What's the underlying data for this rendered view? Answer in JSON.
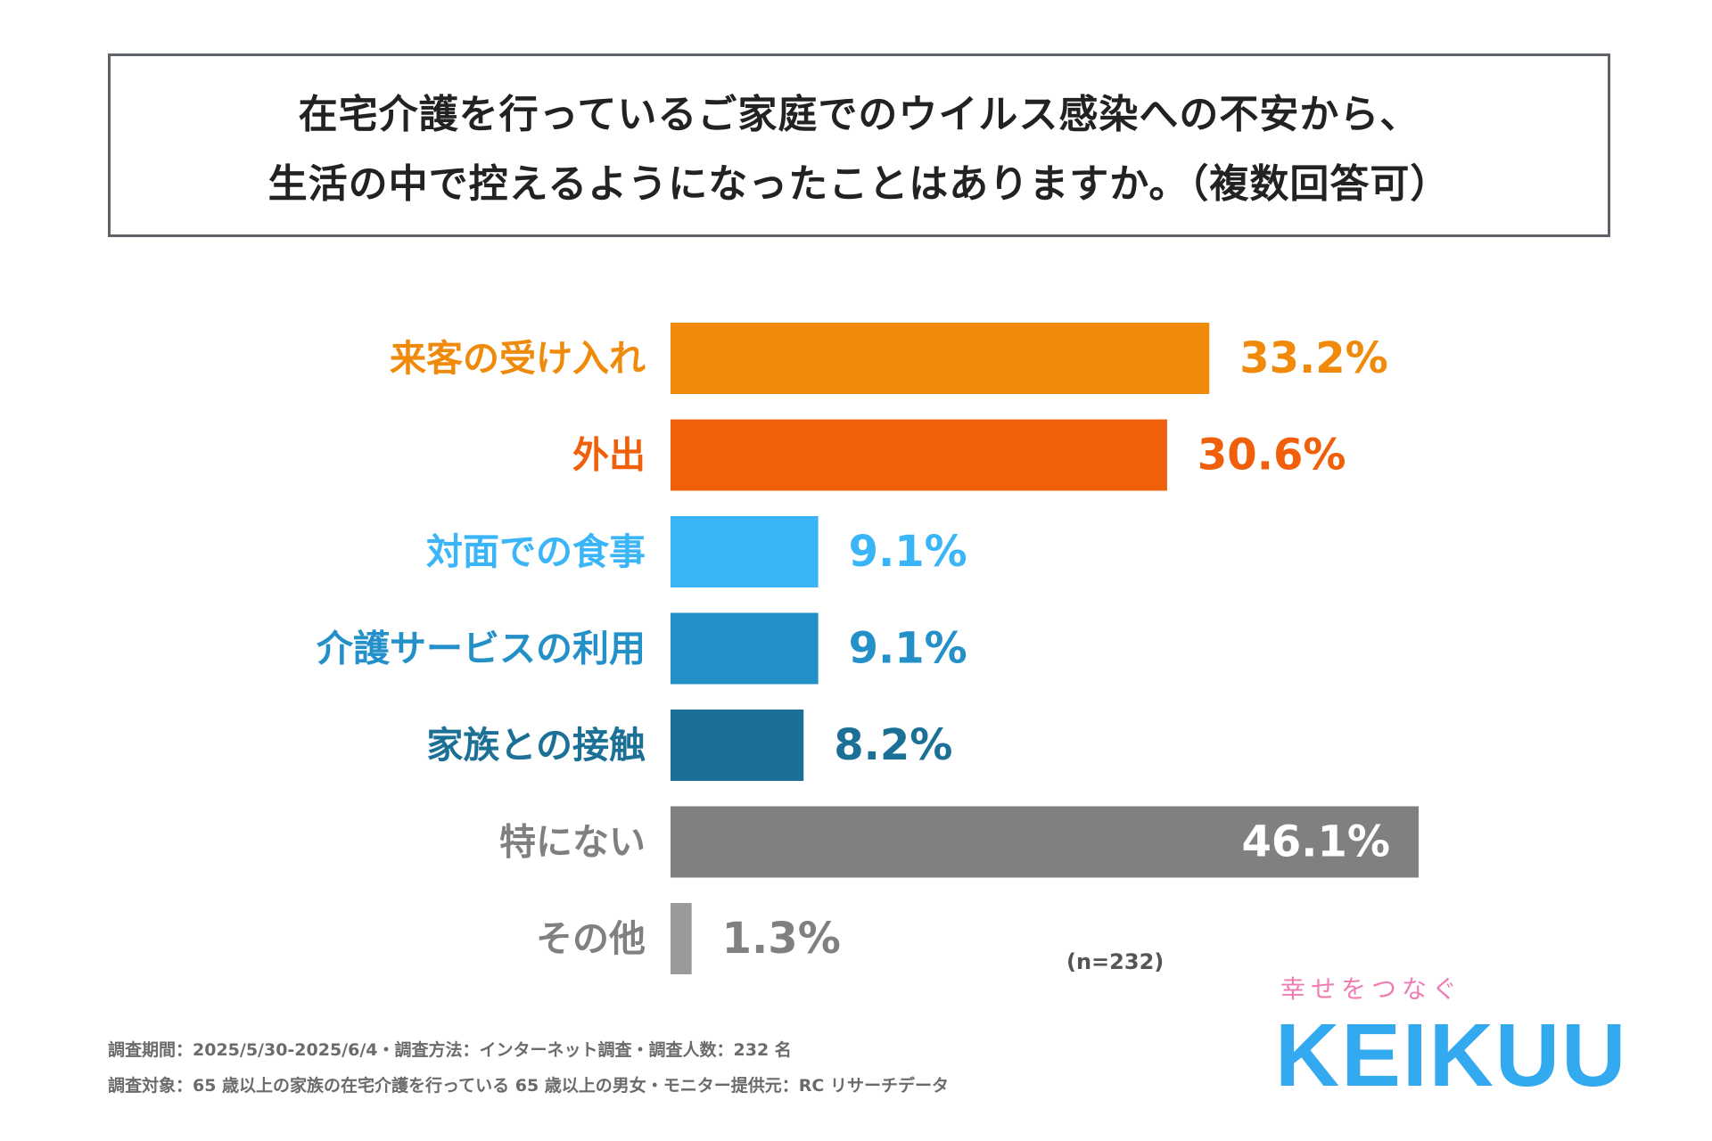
{
  "title": {
    "line1": "在宅介護を行っているご家庭でのウイルス感染への不安から、",
    "line2": "生活の中で控えるようになったことはありますか。（複数回答可）"
  },
  "chart_data": {
    "type": "bar",
    "orientation": "horizontal",
    "title": "在宅介護を行っているご家庭でのウイルス感染への不安から、生活の中で控えるようになったことはありますか。（複数回答可）",
    "categories": [
      "来客の受け入れ",
      "外出",
      "対面での食事",
      "介護サービスの利用",
      "家族との接触",
      "特にない",
      "その他"
    ],
    "values": [
      33.2,
      30.6,
      9.1,
      9.1,
      8.2,
      46.1,
      1.3
    ],
    "value_labels": [
      "33.2%",
      "30.6%",
      "9.1%",
      "9.1%",
      "8.2%",
      "46.1%",
      "1.3%"
    ],
    "colors": [
      "#f08a0b",
      "#f0600b",
      "#3ab5f8",
      "#2390c8",
      "#1c7096",
      "#808080",
      "#9a9a9a"
    ],
    "label_colors": [
      "#f08a0b",
      "#f0600b",
      "#3ab5f8",
      "#2390c8",
      "#1c7096",
      "#808080",
      "#808080"
    ],
    "inside_label_color": "#ffffff",
    "unit": "%",
    "xlim": [
      0,
      50
    ],
    "grid": false,
    "legend": "none"
  },
  "sample_size": "(n=232)",
  "footnotes": {
    "line1": "調査期間：2025/5/30-2025/6/4・調査方法：インターネット調査・調査人数：232 名",
    "line2": "調査対象：65 歳以上の家族の在宅介護を行っている 65 歳以上の男女・モニター提供元：RC リサーチデータ"
  },
  "brand": {
    "tagline": "幸せをつなぐ",
    "name": "KEIKUU"
  }
}
